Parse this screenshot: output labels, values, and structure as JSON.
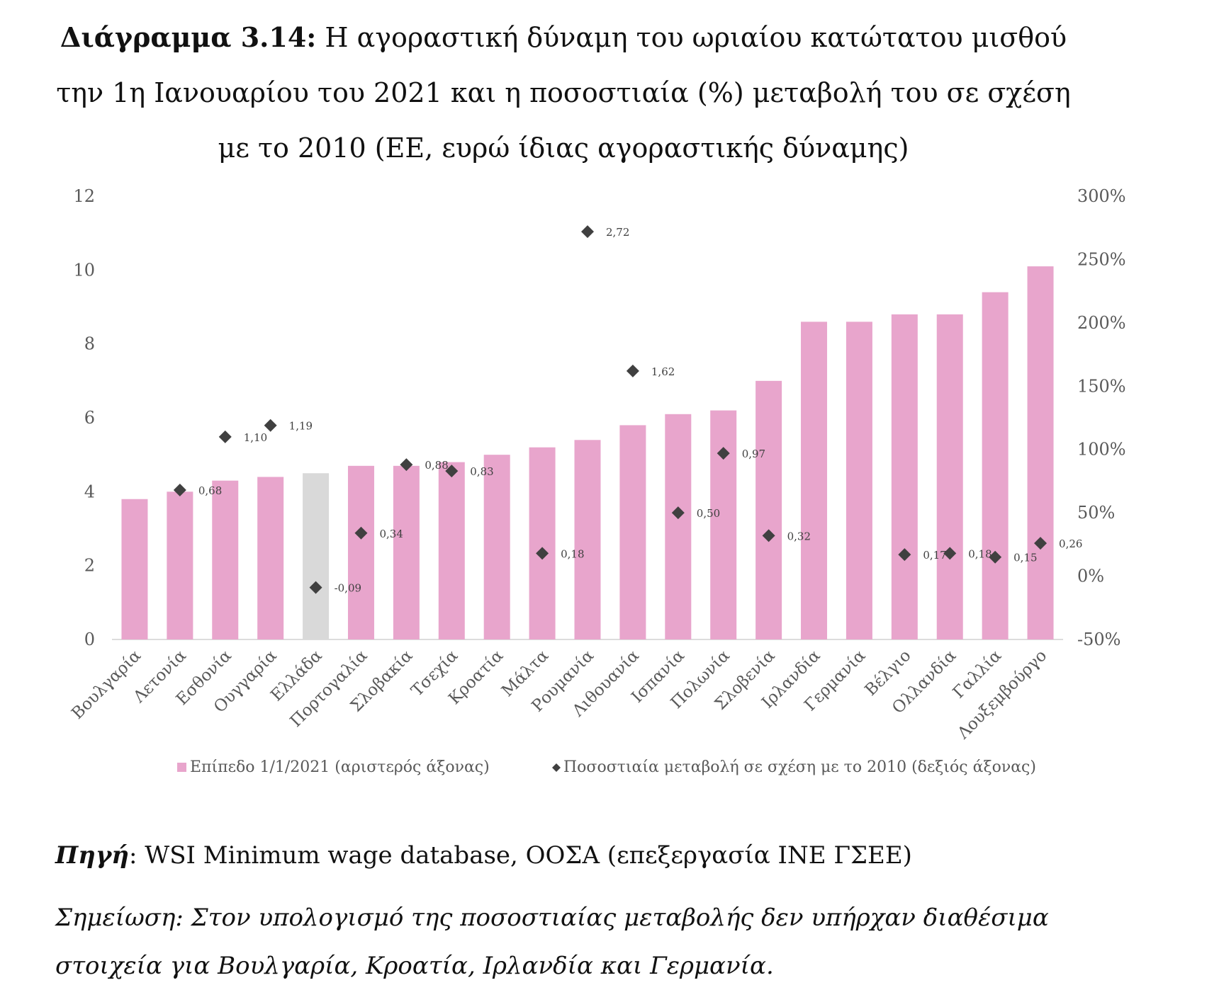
{
  "title": {
    "label": "Διάγραμμα 3.14:",
    "text": "Η αγοραστική δύναμη του ωριαίου κατώτατου μισθού την 1η Ιανουαρίου του 2021 και η ποσοστιαία (%) μεταβολή του σε σχέση με το 2010 (ΕΕ, ευρώ ίδιας αγοραστικής δύναμης)"
  },
  "source": {
    "label": "Πηγή",
    "text": ": WSI Minimum wage database, ΟΟΣΑ (επεξεργασία ΙΝΕ ΓΣΕΕ)"
  },
  "note": {
    "text": "Σημείωση: Στον υπολογισμό της ποσοστιαίας μεταβολής δεν υπήρχαν διαθέσιμα στοιχεία για Βουλγαρία, Κροατία, Ιρλανδία και Γερμανία."
  },
  "chart_data": {
    "type": "bar",
    "categories": [
      "Βουλγαρία",
      "Λετονία",
      "Εσθονία",
      "Ουγγαρία",
      "Ελλάδα",
      "Πορτογαλία",
      "Σλοβακία",
      "Τσεχία",
      "Κροατία",
      "Μάλτα",
      "Ρουμανία",
      "Λιθουανία",
      "Ισπανία",
      "Πολωνία",
      "Σλοβενία",
      "Ιρλανδία",
      "Γερμανία",
      "Βέλγιο",
      "Ολλανδία",
      "Γαλλία",
      "Λουξεμβούργο"
    ],
    "series": [
      {
        "name": "Επίπεδο 1/1/2021 (αριστερός άξονας)",
        "type": "bar",
        "axis": "left",
        "color": "#e8a5cc",
        "highlight_color": "#d9d9d9",
        "highlight_index": 4,
        "values": [
          3.8,
          4.0,
          4.3,
          4.4,
          4.5,
          4.7,
          4.7,
          4.8,
          5.0,
          5.2,
          5.4,
          5.8,
          6.1,
          6.2,
          7.0,
          8.6,
          8.6,
          8.8,
          8.8,
          9.4,
          10.1
        ]
      },
      {
        "name": "Ποσοστιαία μεταβολή σε σχέση με το 2010 (δεξιός άξονας)",
        "type": "scatter",
        "axis": "right",
        "marker": "diamond",
        "color": "#404040",
        "values": [
          null,
          0.68,
          1.1,
          1.19,
          -0.09,
          0.34,
          0.88,
          0.83,
          null,
          0.18,
          2.72,
          1.62,
          0.5,
          0.97,
          0.32,
          null,
          null,
          0.17,
          0.18,
          0.15,
          0.26
        ],
        "labels": [
          null,
          "0,68",
          "1,10",
          "1,19",
          "-0,09",
          "0,34",
          "0,88",
          "0,83",
          null,
          "0,18",
          "2,72",
          "1,62",
          "0,50",
          "0,97",
          "0,32",
          null,
          null,
          "0,17",
          "0,18",
          "0,15",
          "0,26"
        ]
      }
    ],
    "y_left": {
      "min": 0,
      "max": 12,
      "ticks": [
        "0",
        "2",
        "4",
        "6",
        "8",
        "10",
        "12"
      ]
    },
    "y_right": {
      "min": -0.5,
      "max": 3.0,
      "ticks": [
        "-50%",
        "0%",
        "50%",
        "100%",
        "150%",
        "200%",
        "250%",
        "300%"
      ]
    },
    "grid": false,
    "legend_position": "bottom"
  }
}
